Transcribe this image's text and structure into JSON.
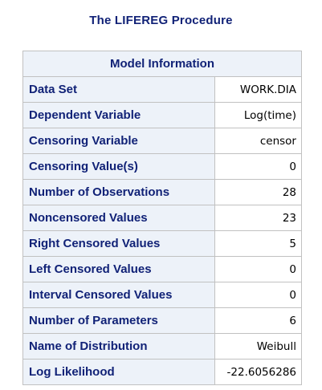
{
  "procedure_title": "The LIFEREG Procedure",
  "table": {
    "caption": "Model Information",
    "rows": [
      {
        "label": "Data Set",
        "value": "WORK.DIA"
      },
      {
        "label": "Dependent Variable",
        "value": "Log(time)"
      },
      {
        "label": "Censoring Variable",
        "value": "censor"
      },
      {
        "label": "Censoring Value(s)",
        "value": "0"
      },
      {
        "label": "Number of Observations",
        "value": "28"
      },
      {
        "label": "Noncensored Values",
        "value": "23"
      },
      {
        "label": "Right Censored Values",
        "value": "5"
      },
      {
        "label": "Left Censored Values",
        "value": "0"
      },
      {
        "label": "Interval Censored Values",
        "value": "0"
      },
      {
        "label": "Number of Parameters",
        "value": "6"
      },
      {
        "label": "Name of Distribution",
        "value": "Weibull"
      },
      {
        "label": "Log Likelihood",
        "value": "-22.6056286"
      }
    ]
  },
  "colors": {
    "title_text": "#112277",
    "header_background": "#edf2f9",
    "border": "#c1c1c1",
    "value_text": "#000000"
  }
}
